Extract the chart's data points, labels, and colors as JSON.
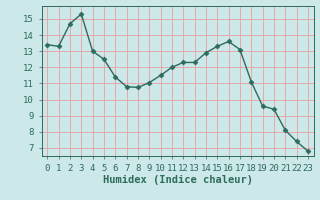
{
  "x": [
    0,
    1,
    2,
    3,
    4,
    5,
    6,
    7,
    8,
    9,
    10,
    11,
    12,
    13,
    14,
    15,
    16,
    17,
    18,
    19,
    20,
    21,
    22,
    23
  ],
  "y": [
    13.4,
    13.3,
    14.7,
    15.3,
    13.0,
    12.5,
    11.4,
    10.8,
    10.75,
    11.05,
    11.5,
    12.0,
    12.3,
    12.3,
    12.9,
    13.3,
    13.6,
    13.1,
    11.1,
    9.6,
    9.4,
    8.1,
    7.4,
    6.8
  ],
  "line_color": "#2d6b5e",
  "marker": "D",
  "marker_size": 2.5,
  "linewidth": 1.0,
  "xlabel": "Humidex (Indice chaleur)",
  "xlim": [
    -0.5,
    23.5
  ],
  "ylim": [
    6.5,
    15.8
  ],
  "yticks": [
    7,
    8,
    9,
    10,
    11,
    12,
    13,
    14,
    15
  ],
  "bg_color": "#cce8e8",
  "grid_color": "#e8a0a0",
  "axis_color": "#2d6b5e",
  "xlabel_fontsize": 7.5,
  "tick_fontsize": 6.5
}
